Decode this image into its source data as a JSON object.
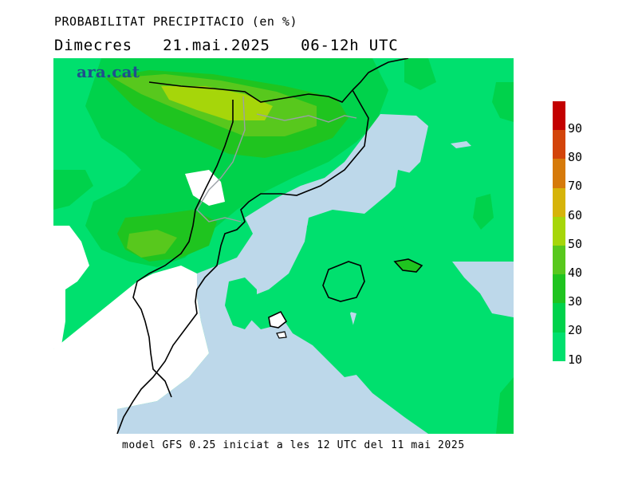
{
  "title": {
    "line1": "PROBABILITAT PRECIPITACIO (en %)",
    "day": "Dimecres",
    "date": "21.mai.2025",
    "hours": "06-12h UTC"
  },
  "logo_text": "ara.cat",
  "footer": "model GFS 0.25 iniciat a les 12 UTC del 11 mai 2025",
  "legend": {
    "labels": [
      "90",
      "80",
      "70",
      "60",
      "50",
      "40",
      "30",
      "20",
      "10"
    ],
    "colors": [
      "#c30000",
      "#d3440a",
      "#d67a0a",
      "#d6b40a",
      "#a6d60a",
      "#58c81d",
      "#1fc41f",
      "#00d24b",
      "#00e06e"
    ]
  },
  "map_colors": {
    "sea_dry": "#bdd8ea",
    "land_dry": "#ffffff",
    "p10": "#00e06e",
    "p20": "#00d24b",
    "p30": "#1fc41f",
    "p40": "#58c81d",
    "p50": "#a6d60a",
    "border": "#000000",
    "internal_border": "#9aa0a6"
  }
}
